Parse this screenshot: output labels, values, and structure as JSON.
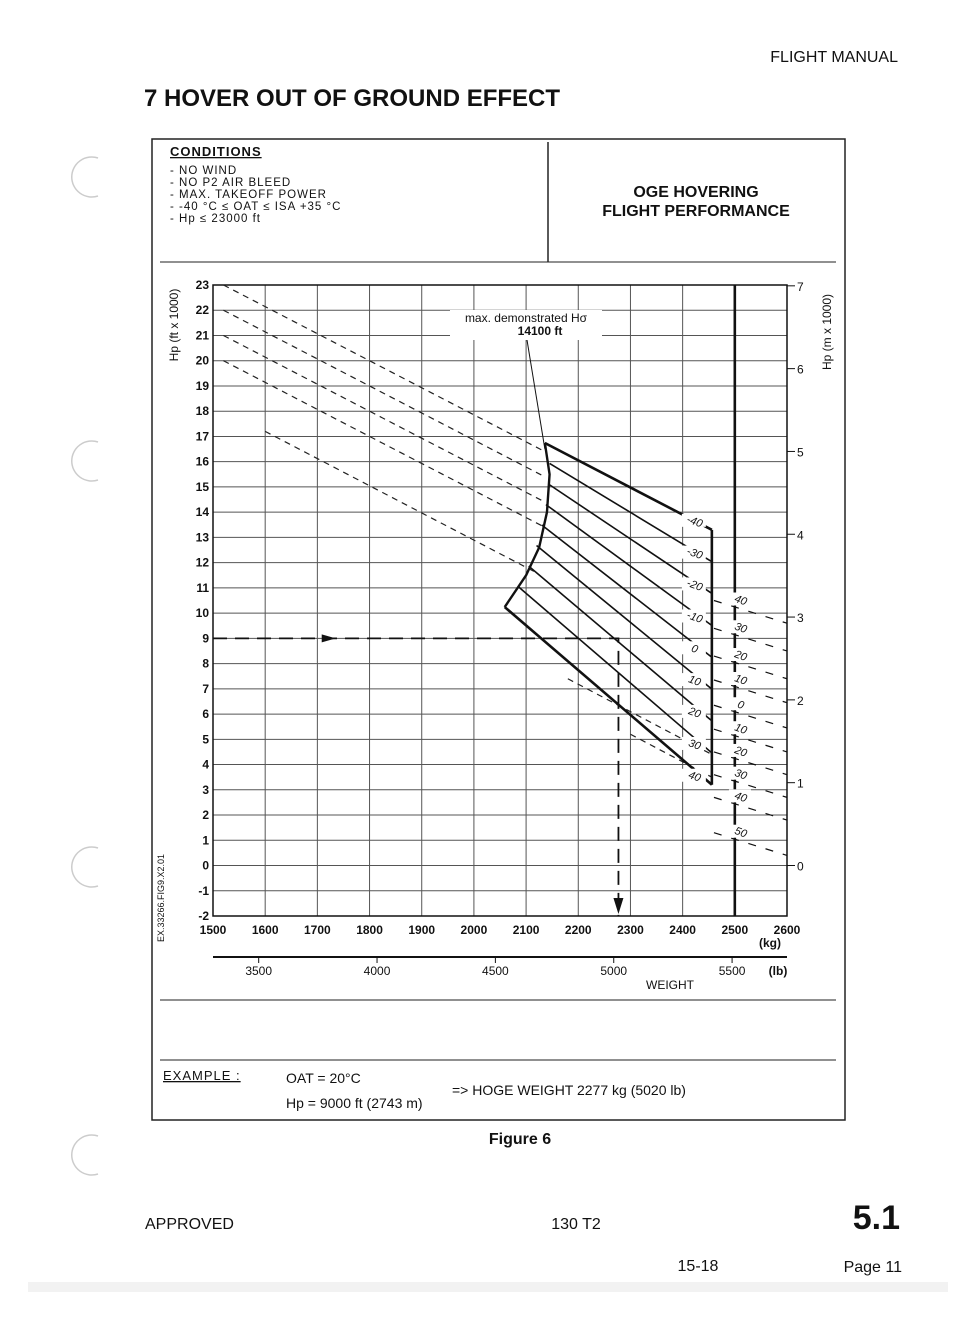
{
  "header": {
    "manual": "FLIGHT MANUAL",
    "title": "7 HOVER OUT OF GROUND EFFECT"
  },
  "conditions": {
    "heading": "CONDITIONS",
    "items": [
      "- NO WIND",
      "- NO P2 AIR BLEED",
      "- MAX. TAKEOFF POWER",
      "- -40 °C ≤ OAT ≤ ISA +35 °C",
      "- Hp ≤ 23000 ft"
    ]
  },
  "panel_title": [
    "OGE HOVERING",
    "FLIGHT PERFORMANCE"
  ],
  "chart_data": {
    "type": "line",
    "y_label": "Hp (ft x 1000)",
    "y2_label": "Hp (m x 1000)",
    "xlim": [
      1500,
      2600
    ],
    "xticks": [
      1500,
      1600,
      1700,
      1800,
      1900,
      2000,
      2100,
      2200,
      2300,
      2400,
      2500,
      2600
    ],
    "x_unit": "(kg)",
    "ylim": [
      -2,
      23
    ],
    "yticks": [
      -2,
      -1,
      0,
      1,
      2,
      3,
      4,
      5,
      6,
      7,
      8,
      9,
      10,
      11,
      12,
      13,
      14,
      15,
      16,
      17,
      18,
      19,
      20,
      21,
      22,
      23
    ],
    "y2lim": [
      -0.61,
      7.01
    ],
    "y2ticks": [
      0,
      1,
      2,
      3,
      4,
      5,
      6,
      7
    ],
    "x2_label": "WEIGHT",
    "x2lim": [
      3307,
      5732
    ],
    "x2ticks": [
      3500,
      4000,
      4500,
      5000,
      5500
    ],
    "x2_unit": "(lb)",
    "grid": true,
    "series": [
      {
        "name": "-40",
        "x": [
          2136,
          2456
        ],
        "values": [
          16.74,
          13.3
        ]
      },
      {
        "name": "-30",
        "x": [
          2145,
          2456
        ],
        "values": [
          15.93,
          12.04
        ]
      },
      {
        "name": "-20",
        "x": [
          2143,
          2456
        ],
        "values": [
          15.11,
          10.78
        ]
      },
      {
        "name": "-10",
        "x": [
          2138,
          2456
        ],
        "values": [
          14.3,
          9.51
        ]
      },
      {
        "name": "0",
        "x": [
          2130,
          2456
        ],
        "values": [
          13.49,
          8.25
        ]
      },
      {
        "name": "10",
        "x": [
          2120,
          2456
        ],
        "values": [
          12.68,
          6.99
        ]
      },
      {
        "name": "20",
        "x": [
          2105,
          2456
        ],
        "values": [
          11.86,
          5.73
        ]
      },
      {
        "name": "30",
        "x": [
          2085,
          2456
        ],
        "values": [
          11.05,
          4.46
        ]
      },
      {
        "name": "40",
        "x": [
          2059,
          2456
        ],
        "values": [
          10.24,
          3.2
        ]
      }
    ],
    "limit_curve": {
      "x": [
        2136,
        2145,
        2140,
        2125,
        2100,
        2059
      ],
      "values": [
        16.74,
        15.5,
        14,
        12.6,
        11.5,
        10.24
      ]
    },
    "weight_limits": [
      {
        "x": [
          2456,
          2456
        ],
        "values": [
          13.3,
          3.2
        ]
      },
      {
        "x": [
          2500,
          2500
        ],
        "values": [
          23,
          -2
        ]
      }
    ],
    "isa_lines": [
      {
        "name": "40",
        "x": [
          2460,
          2600
        ],
        "values": [
          10.5,
          9.6
        ]
      },
      {
        "name": "30",
        "x": [
          2460,
          2600
        ],
        "values": [
          9.4,
          8.5
        ]
      },
      {
        "name": "20",
        "x": [
          2460,
          2600
        ],
        "values": [
          8.3,
          7.4
        ]
      },
      {
        "name": "10",
        "x": [
          2460,
          2600
        ],
        "values": [
          7.35,
          6.45
        ]
      },
      {
        "name": "0",
        "x": [
          2460,
          2600
        ],
        "values": [
          6.35,
          5.45
        ]
      },
      {
        "name": "10",
        "x": [
          2460,
          2600
        ],
        "values": [
          5.4,
          4.5
        ]
      },
      {
        "name": "20",
        "x": [
          2460,
          2600
        ],
        "values": [
          4.5,
          3.6
        ]
      },
      {
        "name": "30",
        "x": [
          2460,
          2600
        ],
        "values": [
          3.6,
          2.7
        ]
      },
      {
        "name": "40",
        "x": [
          2460,
          2600
        ],
        "values": [
          2.7,
          1.8
        ]
      },
      {
        "name": "50",
        "x": [
          2460,
          2600
        ],
        "values": [
          1.3,
          0.4
        ]
      }
    ],
    "reference_lines": [
      {
        "x": [
          1520,
          2136
        ],
        "values": [
          23,
          16.4
        ]
      },
      {
        "x": [
          1520,
          2136
        ],
        "values": [
          22,
          15.4
        ]
      },
      {
        "x": [
          1520,
          2136
        ],
        "values": [
          21,
          14.4
        ]
      },
      {
        "x": [
          1520,
          2136
        ],
        "values": [
          20,
          13.4
        ]
      },
      {
        "x": [
          1600,
          2120
        ],
        "values": [
          17.2,
          11.6
        ]
      },
      {
        "x": [
          2180,
          2456
        ],
        "values": [
          7.4,
          4.4
        ]
      },
      {
        "x": [
          2300,
          2456
        ],
        "values": [
          5.2,
          3.5
        ]
      }
    ],
    "example_path": {
      "x": [
        1500,
        2277,
        2277
      ],
      "values": [
        9,
        9,
        -2
      ]
    },
    "annotation": {
      "text": "max. demonstrated Hσ",
      "value_text": "14100 ft"
    }
  },
  "code": "EX.33266.FIG9.X2.01",
  "example": {
    "label": "EXAMPLE :",
    "oat": "OAT = 20°C",
    "hp": "Hp = 9000 ft (2743 m)",
    "result": "=> HOGE WEIGHT 2277 kg (5020 lb)"
  },
  "caption": "Figure 6",
  "footer": {
    "approved": "APPROVED",
    "model": "130 T2",
    "section": "5.1",
    "doc": "15-18",
    "page": "Page 11"
  }
}
